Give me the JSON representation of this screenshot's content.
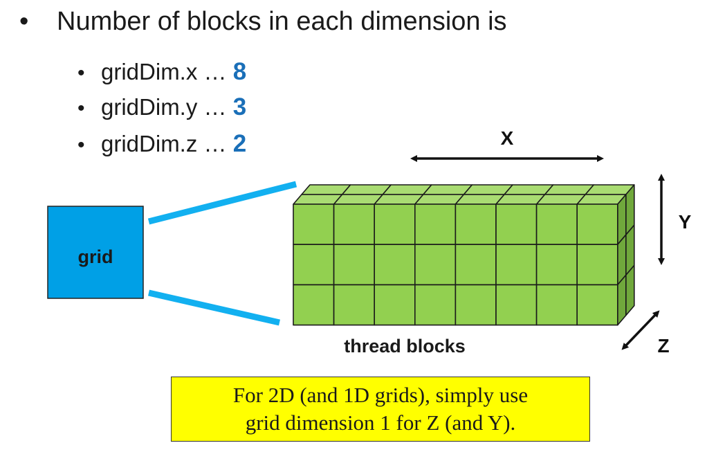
{
  "bullets": {
    "main": "Number of blocks in each dimension is",
    "items": [
      {
        "label": "gridDim.x …",
        "value": "8"
      },
      {
        "label": "gridDim.y …",
        "value": "3"
      },
      {
        "label": "gridDim.z …",
        "value": "2"
      }
    ]
  },
  "diagram": {
    "grid_label": "grid",
    "blocks_label": "thread blocks",
    "axis_x": "X",
    "axis_y": "Y",
    "axis_z": "Z",
    "cols": 8,
    "rows": 3,
    "depth": 2
  },
  "note": {
    "line1": "For 2D (and 1D grids), simply use",
    "line2": "grid dimension 1 for Z (and Y)."
  },
  "colors": {
    "front": "#92d050",
    "top": "#a9dc72",
    "side": "#70a83c",
    "grid_box": "#00a0e6",
    "connector": "#12b0f0",
    "value": "#1a6fb8",
    "note_bg": "#ffff00"
  }
}
